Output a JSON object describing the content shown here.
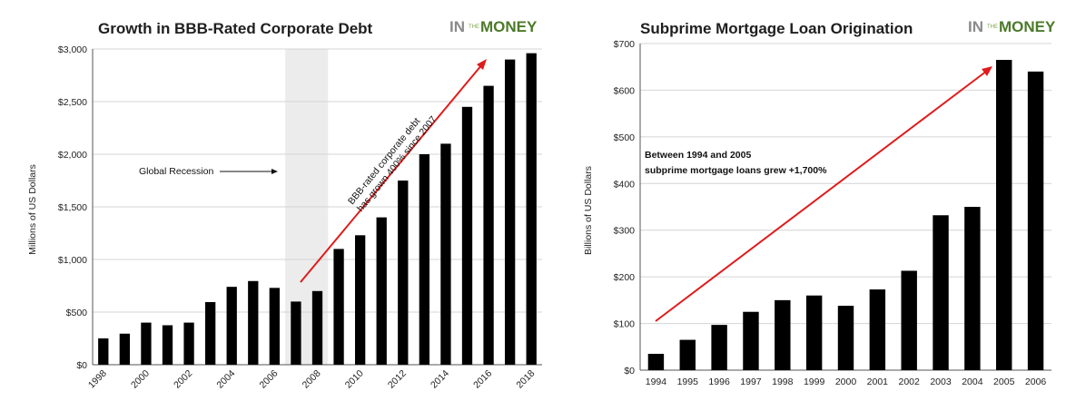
{
  "colors": {
    "bar": "#000000",
    "arrow": "#e01b1b",
    "shade": "#ececec",
    "brand_gray": "#8a8a8a",
    "brand_green": "#4d7a2a"
  },
  "brand": {
    "part1": "IN",
    "part2": "THE",
    "part3": "MONEY"
  },
  "chart_data": [
    {
      "type": "bar",
      "title": "Growth in BBB-Rated Corporate Debt",
      "ylabel": "Millions of US Dollars",
      "xlabel": "",
      "ylim": [
        0,
        3000
      ],
      "yticks": [
        0,
        500,
        1000,
        1500,
        2000,
        2500,
        3000
      ],
      "ytick_labels": [
        "$0",
        "$500",
        "$1,000",
        "$1,500",
        "$2,000",
        "$2,500",
        "$3,000"
      ],
      "categories": [
        "1998",
        "1999",
        "2000",
        "2001",
        "2002",
        "2003",
        "2004",
        "2005",
        "2006",
        "2007",
        "2008",
        "2009",
        "2010",
        "2011",
        "2012",
        "2013",
        "2014",
        "2015",
        "2016",
        "2017",
        "2018"
      ],
      "xtick_labels_shown": [
        "1998",
        "2000",
        "2002",
        "2004",
        "2006",
        "2008",
        "2010",
        "2012",
        "2014",
        "2016",
        "2018"
      ],
      "values": [
        250,
        295,
        400,
        375,
        400,
        595,
        740,
        795,
        730,
        600,
        700,
        1100,
        1230,
        1400,
        1750,
        2000,
        2100,
        2450,
        2650,
        2900,
        2960
      ],
      "shaded_region": {
        "from": "2007",
        "to": "2008",
        "label": "Global Recession"
      },
      "annotations": [
        "Global Recession",
        "BBB-rated corporate debt",
        "has grown 400% since 2007"
      ],
      "grid": true
    },
    {
      "type": "bar",
      "title": "Subprime Mortgage Loan Origination",
      "ylabel": "Billions of US Dollars",
      "xlabel": "",
      "ylim": [
        0,
        700
      ],
      "yticks": [
        0,
        100,
        200,
        300,
        400,
        500,
        600,
        700
      ],
      "ytick_labels": [
        "$0",
        "$100",
        "$200",
        "$300",
        "$400",
        "$500",
        "$600",
        "$700"
      ],
      "categories": [
        "1994",
        "1995",
        "1996",
        "1997",
        "1998",
        "1999",
        "2000",
        "2001",
        "2002",
        "2003",
        "2004",
        "2005",
        "2006"
      ],
      "values": [
        35,
        65,
        97,
        125,
        150,
        160,
        138,
        173,
        213,
        332,
        350,
        665,
        640
      ],
      "annotations": [
        "Between 1994 and 2005",
        "subprime  mortgage loans grew +1,700%"
      ],
      "grid": true
    }
  ]
}
